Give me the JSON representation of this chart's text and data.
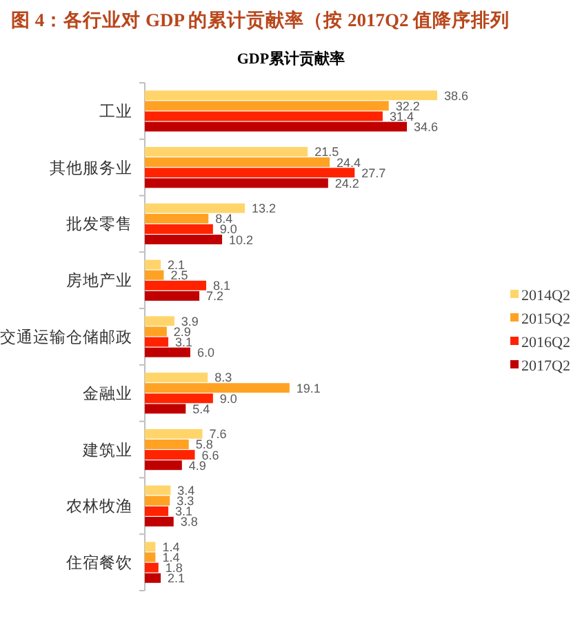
{
  "chart_data": {
    "type": "bar",
    "orientation": "horizontal",
    "title": "图 4：各行业对 GDP 的累计贡献率（按 2017Q2 值降序排列",
    "subtitle": "GDP累计贡献率",
    "categories": [
      "工业",
      "其他服务业",
      "批发零售",
      "房地产业",
      "交通运输仓储邮政",
      "金融业",
      "建筑业",
      "农林牧渔",
      "住宿餐饮"
    ],
    "series": [
      {
        "name": "2014Q2",
        "color": "#ffd56b",
        "values": [
          38.6,
          21.5,
          13.2,
          2.1,
          3.9,
          8.3,
          7.6,
          3.4,
          1.4
        ],
        "value_labels": [
          "38.6",
          "21.5",
          "13.2",
          "2.1",
          "3.9",
          "8.3",
          "7.6",
          "3.4",
          "1.4"
        ]
      },
      {
        "name": "2015Q2",
        "color": "#ffa224",
        "values": [
          32.2,
          24.4,
          8.4,
          2.5,
          2.9,
          19.1,
          5.8,
          3.3,
          1.4
        ],
        "value_labels": [
          "32.2",
          "24.4",
          "8.4",
          "2.5",
          "2.9",
          "19.1",
          "5.8",
          "3.3",
          "1.4"
        ]
      },
      {
        "name": "2016Q2",
        "color": "#ff2300",
        "values": [
          31.4,
          27.7,
          9.0,
          8.1,
          3.1,
          9.0,
          6.6,
          3.1,
          1.8
        ],
        "value_labels": [
          "31.4",
          "27.7",
          "9.0",
          "8.1",
          "3.1",
          "9.0",
          "6.6",
          "3.1",
          "1.8"
        ]
      },
      {
        "name": "2017Q2",
        "color": "#c00000",
        "values": [
          34.6,
          24.2,
          10.2,
          7.2,
          6.0,
          5.4,
          4.9,
          3.8,
          2.1
        ],
        "value_labels": [
          "34.6",
          "24.2",
          "10.2",
          "7.2",
          "6.0",
          "5.4",
          "4.9",
          "3.8",
          "2.1"
        ]
      }
    ],
    "tick_labels": "y",
    "legend": "right"
  }
}
